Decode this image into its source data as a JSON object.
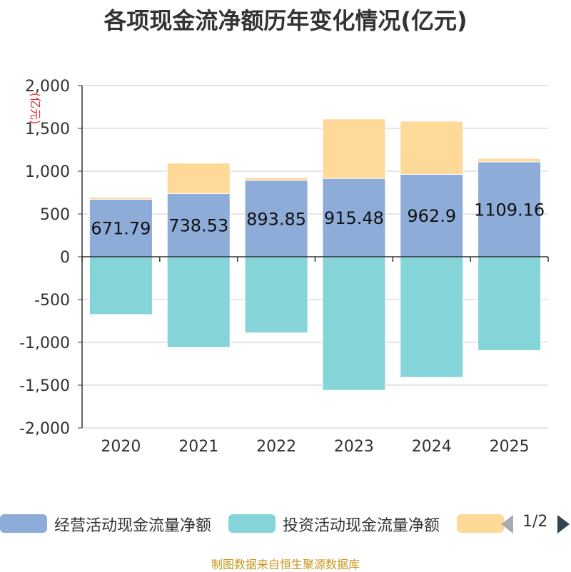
{
  "title": "各项现金流净额历年变化情况(亿元)",
  "source": "制图数据来自恒生聚源数据库",
  "pager": {
    "text": "1/2"
  },
  "colors": {
    "operating": "#8eacd8",
    "investing": "#85d4d8",
    "financing": "#ffd998",
    "grid": "#cccccc",
    "axis": "#333333",
    "text": "#333333",
    "unit": "#e03030"
  },
  "chart_data": {
    "type": "bar",
    "stacked": true,
    "title": "各项现金流净额历年变化情况(亿元)",
    "ylabel": "(亿元)",
    "ylim": [
      -2000,
      2000
    ],
    "yticks": [
      2000,
      1500,
      1000,
      500,
      0,
      -500,
      -1000,
      -1500,
      -2000
    ],
    "ytick_labels": [
      "2,000",
      "1,500",
      "1,000",
      "500",
      "0",
      "-500",
      "-1,000",
      "-1,500",
      "-2,000"
    ],
    "categories": [
      "2020",
      "2021",
      "2022",
      "2023",
      "2024",
      "2025"
    ],
    "series": [
      {
        "name": "经营活动现金流量净额",
        "color_key": "operating",
        "values": [
          671.79,
          738.53,
          893.85,
          915.48,
          962.9,
          1109.16
        ],
        "labels": [
          "671.79",
          "738.53",
          "893.85",
          "915.48",
          "962.9",
          "1109.16"
        ]
      },
      {
        "name": "投资活动现金流量净额",
        "color_key": "investing",
        "values": [
          -675,
          -1060,
          -890,
          -1560,
          -1410,
          -1095
        ]
      },
      {
        "name": "",
        "color_key": "financing",
        "values": [
          25,
          355,
          30,
          695,
          620,
          40
        ]
      }
    ],
    "legend": {
      "position": "bottom",
      "items": [
        "经营活动现金流量净额",
        "投资活动现金流量净额",
        ""
      ]
    }
  }
}
